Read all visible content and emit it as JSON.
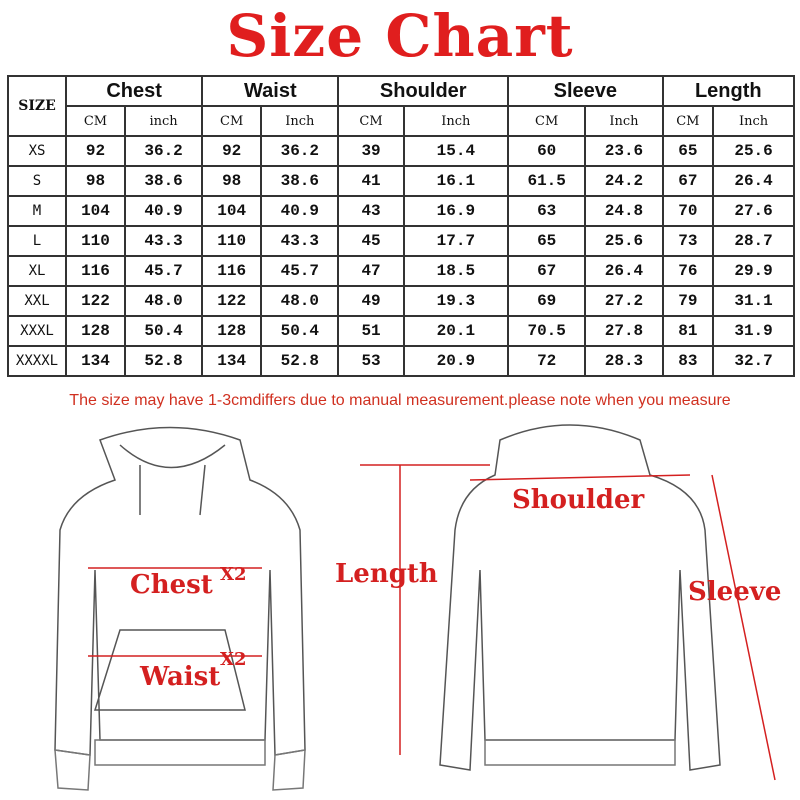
{
  "title": "Size Chart",
  "table": {
    "size_header": "SIZE",
    "groups": [
      "Chest",
      "Waist",
      "Shoulder",
      "Sleeve",
      "Length"
    ],
    "units": [
      "CM",
      "inch",
      "CM",
      "Inch",
      "CM",
      "Inch",
      "CM",
      "Inch",
      "CM",
      "Inch"
    ],
    "rows": [
      [
        "XS",
        "92",
        "36.2",
        "92",
        "36.2",
        "39",
        "15.4",
        "60",
        "23.6",
        "65",
        "25.6"
      ],
      [
        "S",
        "98",
        "38.6",
        "98",
        "38.6",
        "41",
        "16.1",
        "61.5",
        "24.2",
        "67",
        "26.4"
      ],
      [
        "M",
        "104",
        "40.9",
        "104",
        "40.9",
        "43",
        "16.9",
        "63",
        "24.8",
        "70",
        "27.6"
      ],
      [
        "L",
        "110",
        "43.3",
        "110",
        "43.3",
        "45",
        "17.7",
        "65",
        "25.6",
        "73",
        "28.7"
      ],
      [
        "XL",
        "116",
        "45.7",
        "116",
        "45.7",
        "47",
        "18.5",
        "67",
        "26.4",
        "76",
        "29.9"
      ],
      [
        "XXL",
        "122",
        "48.0",
        "122",
        "48.0",
        "49",
        "19.3",
        "69",
        "27.2",
        "79",
        "31.1"
      ],
      [
        "XXXL",
        "128",
        "50.4",
        "128",
        "50.4",
        "51",
        "20.1",
        "70.5",
        "27.8",
        "81",
        "31.9"
      ],
      [
        "XXXXL",
        "134",
        "52.8",
        "134",
        "52.8",
        "53",
        "20.9",
        "72",
        "28.3",
        "83",
        "32.7"
      ]
    ]
  },
  "note": "The size may have 1-3cmdiffers due to manual measurement.please note when you measure",
  "diagram": {
    "front": {
      "chest": "Chest",
      "waist": "Waist",
      "x2a": "X2",
      "x2b": "X2"
    },
    "back": {
      "shoulder": "Shoulder",
      "length": "Length",
      "sleeve": "Sleeve"
    }
  },
  "colors": {
    "title": "#e01e1e",
    "annotation": "#d42020"
  }
}
